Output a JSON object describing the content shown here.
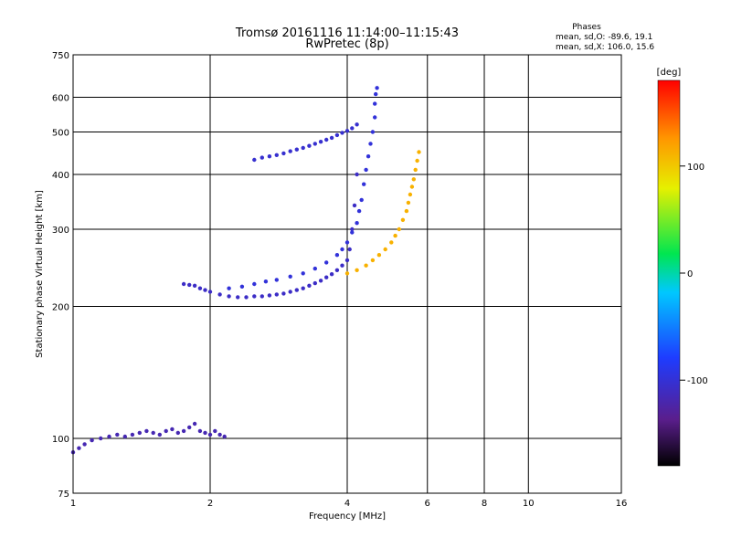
{
  "chart_data": {
    "type": "scatter",
    "title": "Tromsø 20161116 11:14:00–11:15:43",
    "subtitle": "RwPretec (8p)",
    "notes": [
      "Phases",
      "mean, sd,O: -89.6, 19.1",
      "mean, sd,X: 106.0, 15.6"
    ],
    "xlabel": "Frequency [MHz]",
    "ylabel": "Stationary phase Virtual Height [km]",
    "xscale": "log",
    "yscale": "log",
    "xlim": [
      1,
      16
    ],
    "ylim": [
      75,
      750
    ],
    "xticks": [
      1,
      2,
      4,
      6,
      8,
      10,
      16
    ],
    "xtick_labels": [
      "1",
      "2",
      "4",
      "6",
      "8",
      "10",
      "16"
    ],
    "yticks": [
      75,
      100,
      200,
      300,
      400,
      500,
      600,
      750
    ],
    "ytick_labels": [
      "75",
      "100",
      "200",
      "300",
      "400",
      "500",
      "600",
      "750"
    ],
    "grid": true,
    "colorbar": {
      "label": "[deg]",
      "range": [
        -180,
        180
      ],
      "ticks": [
        100,
        0,
        -100
      ],
      "tick_labels": [
        "100",
        "0",
        "-100"
      ]
    },
    "series": [
      {
        "phase_deg": -120,
        "x": [
          1.0,
          1.03,
          1.06,
          1.1,
          1.15,
          1.2,
          1.25,
          1.3,
          1.35,
          1.4,
          1.45,
          1.5,
          1.55,
          1.6,
          1.65,
          1.7,
          1.75,
          1.8,
          1.85,
          1.9,
          1.95,
          2.0,
          2.05,
          2.1,
          2.15
        ],
        "y": [
          93,
          95,
          97,
          99,
          100,
          101,
          102,
          101,
          102,
          103,
          104,
          103,
          102,
          104,
          105,
          103,
          104,
          106,
          108,
          104,
          103,
          102,
          104,
          102,
          101
        ]
      },
      {
        "phase_deg": -110,
        "x": [
          1.75,
          1.8,
          1.85,
          1.9,
          1.95,
          2.0,
          2.1,
          2.2,
          2.3,
          2.4,
          2.5,
          2.6,
          2.7,
          2.8,
          2.9,
          3.0,
          3.1,
          3.2,
          3.3,
          3.4,
          3.5,
          3.6,
          3.7,
          3.8,
          3.9,
          4.0,
          4.05,
          4.1,
          4.15,
          4.2
        ],
        "y": [
          225,
          224,
          223,
          220,
          218,
          216,
          213,
          211,
          210,
          210,
          211,
          211,
          212,
          213,
          214,
          216,
          218,
          220,
          223,
          226,
          229,
          233,
          237,
          242,
          248,
          255,
          270,
          300,
          340,
          400
        ]
      },
      {
        "phase_deg": -100,
        "x": [
          2.2,
          2.35,
          2.5,
          2.65,
          2.8,
          3.0,
          3.2,
          3.4,
          3.6,
          3.8,
          3.9,
          4.0,
          4.1,
          4.2,
          4.25,
          4.3,
          4.35,
          4.4,
          4.45,
          4.5,
          4.55,
          4.6,
          4.6,
          4.62,
          4.65
        ],
        "y": [
          220,
          222,
          225,
          228,
          230,
          234,
          238,
          244,
          252,
          262,
          270,
          280,
          295,
          310,
          330,
          350,
          380,
          410,
          440,
          470,
          500,
          540,
          580,
          610,
          630
        ]
      },
      {
        "phase_deg": -105,
        "x": [
          2.5,
          2.6,
          2.7,
          2.8,
          2.9,
          3.0,
          3.1,
          3.2,
          3.3,
          3.4,
          3.5,
          3.6,
          3.7,
          3.8,
          3.9,
          4.0,
          4.1,
          4.2
        ],
        "y": [
          432,
          437,
          440,
          443,
          447,
          452,
          456,
          460,
          465,
          470,
          475,
          480,
          485,
          492,
          498,
          503,
          510,
          520
        ]
      },
      {
        "phase_deg": 115,
        "x": [
          4.0,
          4.2,
          4.4,
          4.55,
          4.7,
          4.85,
          5.0,
          5.1,
          5.2,
          5.3,
          5.4,
          5.45,
          5.5,
          5.55,
          5.6,
          5.65,
          5.7,
          5.75
        ],
        "y": [
          238,
          242,
          248,
          255,
          262,
          270,
          280,
          290,
          300,
          315,
          330,
          345,
          360,
          375,
          390,
          410,
          430,
          450
        ]
      }
    ]
  }
}
